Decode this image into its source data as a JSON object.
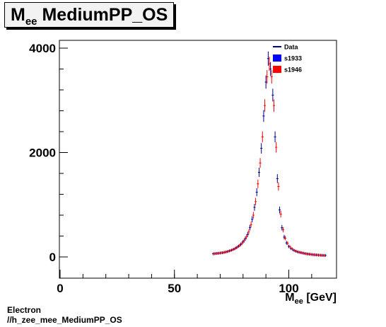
{
  "title": {
    "main": "M",
    "sub": "ee",
    "rest": " MediumPP_OS"
  },
  "footer": {
    "line1": "Electron",
    "line2": "//h_zee_mee_MediumPP_OS"
  },
  "chart_data": {
    "type": "scatter",
    "xlabel": {
      "main": "M",
      "sub": "ee",
      "rest": " [GeV]"
    },
    "ylabel": "",
    "xlim": [
      -1,
      120
    ],
    "ylim": [
      -250,
      4100
    ],
    "x_ticks": [
      0,
      50,
      100
    ],
    "y_ticks": [
      0,
      2000,
      4000
    ],
    "legend_position": "top-right",
    "legend": [
      {
        "label": "Data",
        "style": "line",
        "color": "#00008b"
      },
      {
        "label": "s1933",
        "style": "box",
        "color": "#0000ff"
      },
      {
        "label": "s1946",
        "style": "box",
        "color": "#ff0000"
      }
    ],
    "series": [
      {
        "name": "s1933",
        "color": "#00008b",
        "x": [
          67,
          68,
          69,
          70,
          71,
          72,
          73,
          74,
          75,
          76,
          77,
          78,
          79,
          80,
          81,
          82,
          83,
          84,
          85,
          86,
          87,
          88,
          89,
          90,
          91,
          92,
          93,
          94,
          95,
          96,
          97,
          98,
          99,
          100,
          101,
          102,
          103,
          104,
          105,
          106,
          107,
          108,
          109,
          110,
          111,
          112,
          113,
          114,
          115,
          116
        ],
        "y": [
          60,
          65,
          70,
          75,
          80,
          90,
          100,
          115,
          130,
          150,
          175,
          205,
          240,
          290,
          350,
          430,
          560,
          720,
          950,
          1240,
          1620,
          2080,
          2700,
          3350,
          3800,
          3600,
          3100,
          2300,
          1500,
          900,
          560,
          380,
          270,
          200,
          160,
          130,
          110,
          95,
          85,
          75,
          65,
          58,
          52,
          47,
          42,
          38,
          35,
          32,
          30,
          28
        ]
      },
      {
        "name": "s1946",
        "color": "#ff0000",
        "x": [
          67.5,
          68.5,
          69.5,
          70.5,
          71.5,
          72.5,
          73.5,
          74.5,
          75.5,
          76.5,
          77.5,
          78.5,
          79.5,
          80.5,
          81.5,
          82.5,
          83.5,
          84.5,
          85.5,
          86.5,
          87.5,
          88.5,
          89.5,
          90.5,
          91.5,
          92.5,
          93.5,
          94.5,
          95.5,
          96.5,
          97.5,
          98.5,
          99.5,
          100.5,
          101.5,
          102.5,
          103.5,
          104.5,
          105.5,
          106.5,
          107.5,
          108.5,
          109.5,
          110.5,
          111.5,
          112.5,
          113.5,
          114.5,
          115.5
        ],
        "y": [
          62,
          67,
          72,
          78,
          85,
          95,
          108,
          122,
          140,
          160,
          188,
          220,
          260,
          315,
          385,
          480,
          620,
          800,
          1060,
          1400,
          1800,
          2300,
          2900,
          3450,
          3700,
          3450,
          2900,
          2100,
          1350,
          820,
          520,
          360,
          260,
          195,
          155,
          125,
          105,
          92,
          82,
          72,
          63,
          56,
          50,
          45,
          41,
          37,
          34,
          31,
          29
        ]
      }
    ]
  }
}
